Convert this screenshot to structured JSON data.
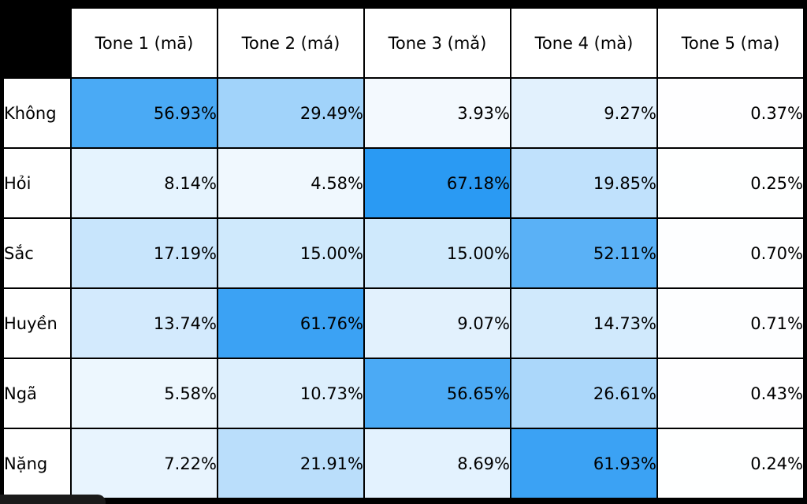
{
  "chart_data": {
    "type": "table",
    "columns": [
      "Tone 1 (mā)",
      "Tone 2 (má)",
      "Tone 3 (mǎ)",
      "Tone 4 (mà)",
      "Tone 5 (ma)"
    ],
    "rows": [
      {
        "label": "Không",
        "values": [
          "56.93%",
          "29.49%",
          "3.93%",
          "9.27%",
          "0.37%"
        ]
      },
      {
        "label": "Hỏi",
        "values": [
          "8.14%",
          "4.58%",
          "67.18%",
          "19.85%",
          "0.25%"
        ]
      },
      {
        "label": "Sắc",
        "values": [
          "17.19%",
          "15.00%",
          "15.00%",
          "52.11%",
          "0.70%"
        ]
      },
      {
        "label": "Huyền",
        "values": [
          "13.74%",
          "61.76%",
          "9.07%",
          "14.73%",
          "0.71%"
        ]
      },
      {
        "label": "Ngã",
        "values": [
          "5.58%",
          "10.73%",
          "56.65%",
          "26.61%",
          "0.43%"
        ]
      },
      {
        "label": "Nặng",
        "values": [
          "7.22%",
          "21.91%",
          "8.69%",
          "61.93%",
          "0.24%"
        ]
      }
    ],
    "color_scale": {
      "low": "#ffffff",
      "high": "#2196f3",
      "min": 0,
      "max": 70
    }
  }
}
